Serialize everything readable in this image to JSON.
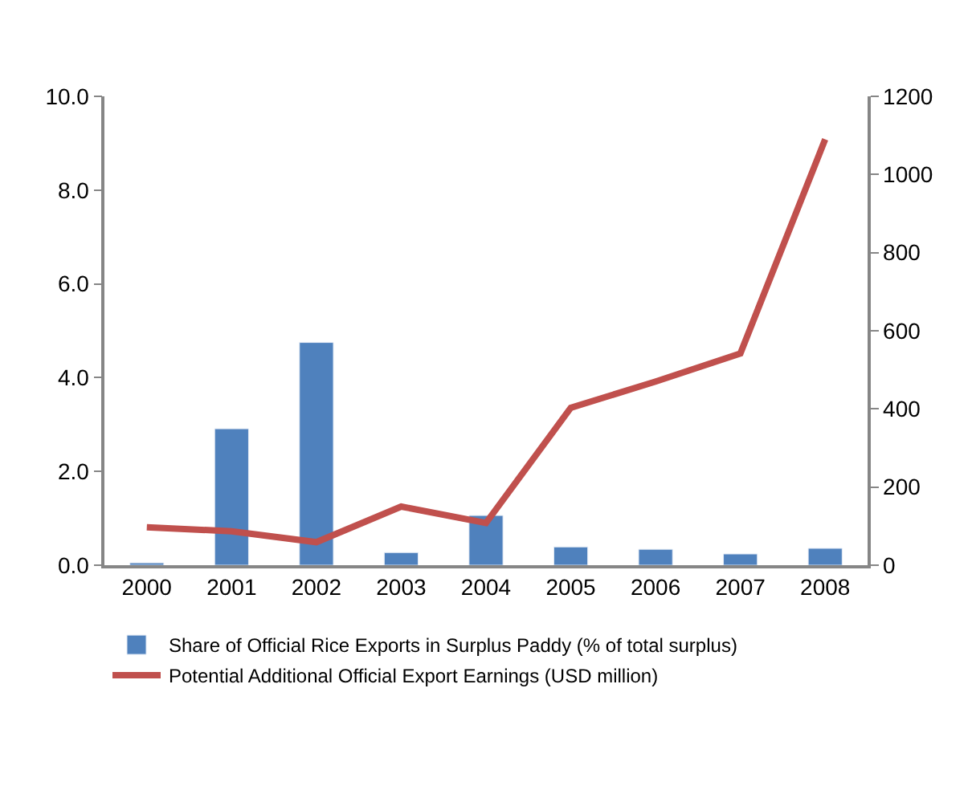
{
  "chart_data": {
    "type": "bar",
    "categories": [
      "2000",
      "2001",
      "2002",
      "2003",
      "2004",
      "2005",
      "2006",
      "2007",
      "2008"
    ],
    "series": [
      {
        "name": "Share of Official Rice Exports in Surplus Paddy (% of total surplus)",
        "color": "#4f81bd",
        "values": [
          0.05,
          2.91,
          4.75,
          0.27,
          1.06,
          0.39,
          0.34,
          0.24,
          0.36
        ]
      },
      {
        "name": "Potential Additional Official Export Earnings (USD million)",
        "type": "line",
        "axis": "y2",
        "color": "#c0504d",
        "values": [
          97,
          87,
          59,
          150,
          108,
          403,
          470,
          542,
          1090
        ]
      }
    ],
    "ylim": [
      0,
      10
    ],
    "yticks": [
      {
        "value": 0,
        "label": "0.0"
      },
      {
        "value": 2,
        "label": "2.0"
      },
      {
        "value": 4,
        "label": "4.0"
      },
      {
        "value": 6,
        "label": "6.0"
      },
      {
        "value": 8,
        "label": "8.0"
      },
      {
        "value": 10,
        "label": "10.0"
      }
    ],
    "y2lim": [
      0,
      1200
    ],
    "y2ticks": [
      0,
      200,
      400,
      600,
      800,
      1000,
      1200
    ],
    "legend": "bottom"
  }
}
